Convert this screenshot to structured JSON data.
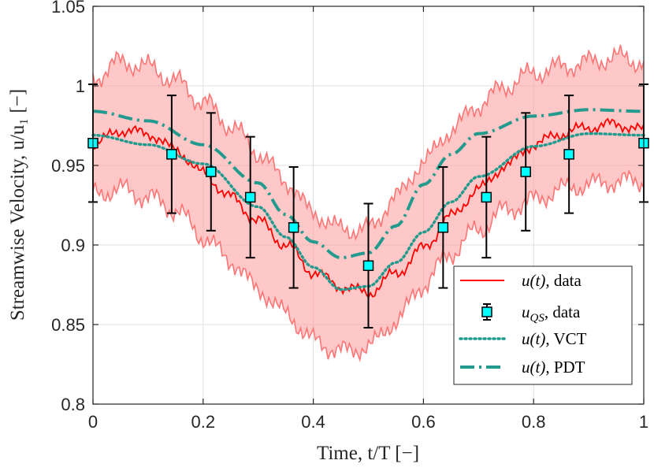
{
  "chart_data": {
    "type": "line",
    "title": "",
    "xlabel": "Time, t/T [−]",
    "ylabel": "Streamwise Velocity, u/u₁ [−]",
    "xlim": [
      0,
      1
    ],
    "ylim": [
      0.8,
      1.05
    ],
    "xticks": [
      "0",
      "0.2",
      "0.4",
      "0.6",
      "0.8",
      "1"
    ],
    "yticks": [
      "0.8",
      "0.85",
      "0.9",
      "0.95",
      "1",
      "1.05"
    ],
    "grid": true,
    "legend_position": "bottom-right",
    "colors": {
      "data_line": "#ff0000",
      "band_fill": "#ff9a9a",
      "band_edge": "#ff7575",
      "marker_fill": "#00ffff",
      "vct_line": "#229a8d",
      "pdt_line": "#229a8d",
      "errorbar": "#000000"
    },
    "series": [
      {
        "name": "u(t), data",
        "style": "solid-noisy",
        "x": [
          0,
          0.05,
          0.1,
          0.15,
          0.2,
          0.25,
          0.3,
          0.35,
          0.4,
          0.45,
          0.5,
          0.55,
          0.6,
          0.65,
          0.7,
          0.75,
          0.8,
          0.85,
          0.9,
          0.95,
          1.0
        ],
        "y": [
          0.963,
          0.972,
          0.97,
          0.96,
          0.945,
          0.93,
          0.915,
          0.9,
          0.883,
          0.874,
          0.87,
          0.882,
          0.898,
          0.918,
          0.935,
          0.95,
          0.963,
          0.97,
          0.974,
          0.976,
          0.972
        ],
        "band_lower": [
          0.932,
          0.935,
          0.93,
          0.922,
          0.905,
          0.89,
          0.872,
          0.857,
          0.84,
          0.833,
          0.836,
          0.852,
          0.875,
          0.895,
          0.91,
          0.922,
          0.928,
          0.935,
          0.938,
          0.94,
          0.94
        ],
        "band_upper": [
          1.005,
          1.015,
          1.012,
          1.003,
          0.99,
          0.975,
          0.958,
          0.94,
          0.92,
          0.91,
          0.91,
          0.93,
          0.952,
          0.972,
          0.988,
          1.0,
          1.008,
          1.012,
          1.015,
          1.018,
          1.015
        ]
      },
      {
        "name": "u_QS, data",
        "style": "markers-errorbars",
        "x": [
          0,
          0.1429,
          0.2143,
          0.2857,
          0.3643,
          0.5,
          0.6357,
          0.7143,
          0.7857,
          0.8643,
          1.0
        ],
        "y": [
          0.964,
          0.957,
          0.946,
          0.93,
          0.911,
          0.887,
          0.911,
          0.93,
          0.946,
          0.957,
          0.964
        ],
        "err": [
          0.037,
          0.037,
          0.037,
          0.038,
          0.038,
          0.039,
          0.038,
          0.038,
          0.037,
          0.037,
          0.037
        ]
      },
      {
        "name": "u(t), VCT",
        "style": "dotted",
        "x": [
          0,
          0.1,
          0.2,
          0.3,
          0.35,
          0.4,
          0.45,
          0.5,
          0.55,
          0.6,
          0.65,
          0.7,
          0.8,
          0.9,
          1.0
        ],
        "y": [
          0.969,
          0.963,
          0.951,
          0.924,
          0.905,
          0.886,
          0.872,
          0.874,
          0.889,
          0.908,
          0.927,
          0.943,
          0.962,
          0.97,
          0.969
        ]
      },
      {
        "name": "u(t), PDT",
        "style": "dash-dot",
        "x": [
          0,
          0.1,
          0.2,
          0.3,
          0.35,
          0.4,
          0.45,
          0.5,
          0.55,
          0.6,
          0.65,
          0.7,
          0.8,
          0.9,
          1.0
        ],
        "y": [
          0.984,
          0.978,
          0.963,
          0.939,
          0.919,
          0.902,
          0.892,
          0.895,
          0.912,
          0.938,
          0.957,
          0.97,
          0.981,
          0.985,
          0.984
        ]
      }
    ],
    "legend_entries": [
      {
        "main": "u(t)",
        "suffix": ", data"
      },
      {
        "main": "u",
        "sub": "QS",
        "suffix": ", data"
      },
      {
        "main": "u(t)",
        "suffix": ", VCT"
      },
      {
        "main": "u(t)",
        "suffix": ", PDT"
      }
    ]
  }
}
